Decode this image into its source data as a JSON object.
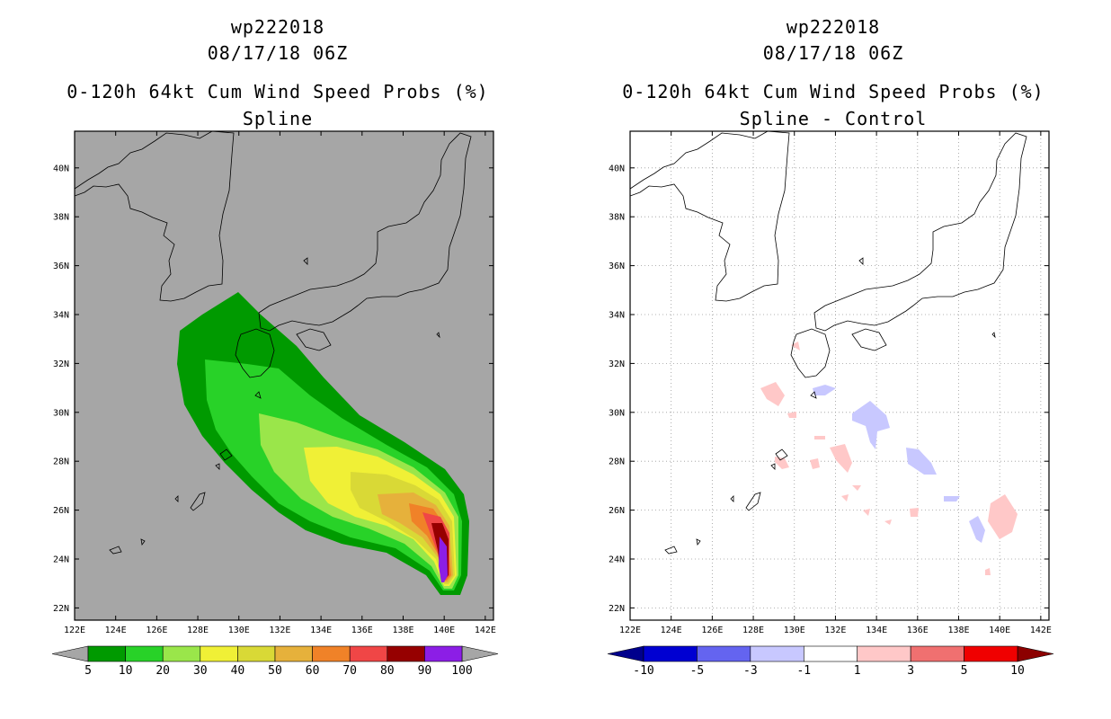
{
  "chart_data": [
    {
      "type": "filled-contour-map",
      "title": {
        "storm_id": "wp222018",
        "datetime": "08/17/18 06Z",
        "product": "0-120h 64kt Cum Wind Speed Probs (%)",
        "subtitle": "Spline"
      },
      "x_ticks": [
        "122E",
        "124E",
        "126E",
        "128E",
        "130E",
        "132E",
        "134E",
        "136E",
        "138E",
        "140E",
        "142E"
      ],
      "y_ticks": [
        "22N",
        "24N",
        "26N",
        "28N",
        "30N",
        "32N",
        "34N",
        "36N",
        "38N",
        "40N"
      ],
      "lon_range": [
        122,
        142.4
      ],
      "lat_range": [
        21.5,
        41.5
      ],
      "levels": [
        "5",
        "10",
        "20",
        "30",
        "40",
        "50",
        "60",
        "70",
        "80",
        "90",
        "100"
      ],
      "level_values": [
        5,
        10,
        20,
        30,
        40,
        50,
        60,
        70,
        80,
        90,
        100
      ],
      "colors": [
        "#009a00",
        "#28d228",
        "#9ae64a",
        "#f0f036",
        "#d9d936",
        "#e6b13b",
        "#f08228",
        "#f04646",
        "#960000",
        "#8c1ee6"
      ],
      "underflow_color": "#a6a6a6",
      "overflow_color": "#a6a6a6",
      "background": "#a6a6a6"
    },
    {
      "type": "filled-contour-map",
      "title": {
        "storm_id": "wp222018",
        "datetime": "08/17/18 06Z",
        "product": "0-120h 64kt Cum Wind Speed Probs (%)",
        "subtitle": "Spline - Control"
      },
      "x_ticks": [
        "122E",
        "124E",
        "126E",
        "128E",
        "130E",
        "132E",
        "134E",
        "136E",
        "138E",
        "140E",
        "142E"
      ],
      "y_ticks": [
        "22N",
        "24N",
        "26N",
        "28N",
        "30N",
        "32N",
        "34N",
        "36N",
        "38N",
        "40N"
      ],
      "lon_range": [
        122,
        142.4
      ],
      "lat_range": [
        21.5,
        41.5
      ],
      "levels": [
        "-10",
        "-5",
        "-3",
        "-1",
        "1",
        "3",
        "5",
        "10"
      ],
      "level_values": [
        -10,
        -5,
        -3,
        -1,
        1,
        3,
        5,
        10
      ],
      "colors": [
        "#0000d2",
        "#6464f0",
        "#c8c8ff",
        "#ffffff",
        "#ffc8c8",
        "#f07070",
        "#f00000"
      ],
      "underflow_color": "#00008c",
      "overflow_color": "#8c0000",
      "background": "#ffffff"
    }
  ]
}
